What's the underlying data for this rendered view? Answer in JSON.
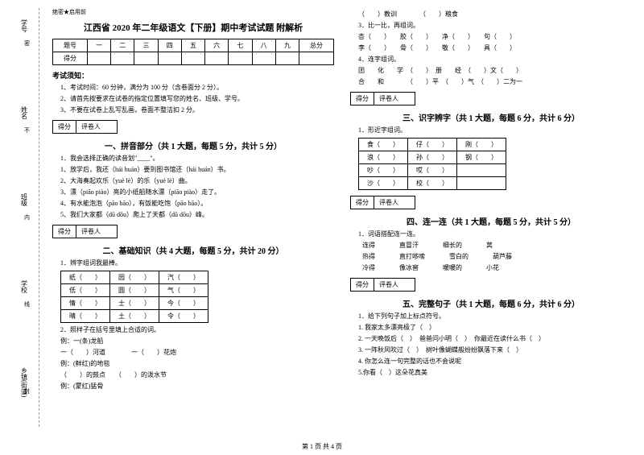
{
  "side": {
    "labels": [
      "学号",
      "姓名",
      "班级",
      "学校",
      "乡镇(街道)"
    ],
    "marks": [
      "密",
      "不",
      "内",
      "线",
      "封"
    ]
  },
  "topNote": "绝密★启用前",
  "title": "江西省 2020 年二年级语文【下册】期中考试试题 附解析",
  "scoreTable": {
    "headers": [
      "题号",
      "一",
      "二",
      "三",
      "四",
      "五",
      "六",
      "七",
      "八",
      "九",
      "总分"
    ],
    "row": "得分"
  },
  "notice": {
    "title": "考试须知：",
    "items": [
      "1、考试时间：60 分钟，满分为 100 分（含卷面分 2 分）。",
      "2、请首先按要求在试卷的指定位置填写您的姓名、班级、学号。",
      "3、不要在试卷上乱写乱画，卷面不整洁扣 2 分。"
    ]
  },
  "scoreBox": {
    "a": "得分",
    "b": "评卷人"
  },
  "q1": {
    "title": "一、拼音部分（共 1 大题，每题 5 分，共计 5 分）",
    "stem": "1．我会选择正确的读音划\"____\"。",
    "lines": [
      "1、放学后，我还（hái  huán）要到图书馆还（hái  huán）书。",
      "2、大海奏起欢乐（yuè  lè）的乐（yuè  lè）曲。",
      "3、漂（piāo  piào）亮的小纸船随水漂（piāo  piào）走了。",
      "4、有水能泡泡（pāo bāo），有饭能吃饱（pāo bāo）。",
      "5、我们大家都（dū dōu）爬上了天都（dū dōu）峰。"
    ]
  },
  "q2": {
    "title": "二、基础知识（共 4 大题，每题 5 分，共计 20 分）",
    "stem1": "1．辨字组词我最棒。",
    "table": [
      [
        "纸（　　）",
        "园（　　）",
        "汽（　　）"
      ],
      [
        "低（　　）",
        "圆（　　）",
        "气（　　）"
      ],
      [
        "情（　　）",
        "士（　　）",
        "今（　　）"
      ],
      [
        "晴（　　）",
        "土（　　）",
        "令（　　）"
      ]
    ],
    "stem2": "2．照样子在括号里填上合适的词。",
    "lines2": [
      "例：一(条)龙船",
      "一（　　）河道　　　　一（　　）花炮",
      "例：(鲜红)的地毯",
      "（　　）的鼓点　　（　　）的泼水节",
      "例：(蒙红)猛骨"
    ]
  },
  "right": {
    "top": [
      "（　　）教训　　　　（　　）粮食",
      "3．比一比，再组词。",
      "杏（　　）　　胶（　　）　　净（　　）　　句（　　）",
      "李（　　）　　骨（　　）　　敬（　　）　　具（　　）",
      "4．连字组词。",
      "团　　化　　学　（　　）　册　　经　（　　）文（　　）",
      "合　　和　　　　（　　）平　（　　）气　（　　）二为一"
    ],
    "q3": {
      "title": "三、识字辨字（共 1 大题，每题 6 分，共计 6 分）",
      "stem": "1．形近字组词。",
      "table": [
        [
          "食（　　）",
          "仔（　　）",
          "刚（　　）"
        ],
        [
          "浪（　　）",
          "孙（　　）",
          "钢（　　）"
        ],
        [
          "吵（　　）",
          "哎（　　）",
          ""
        ],
        [
          "沙（　　）",
          "校（　　）",
          ""
        ]
      ]
    },
    "q4": {
      "title": "四、连一连（共 1 大题，每题 5 分，共计 5 分）",
      "stem": "1．词语搭配连一连。",
      "rows": [
        [
          "连得",
          "直冒汗",
          "细长的",
          "莴"
        ],
        [
          "热得",
          "直打哆嗦",
          "雪白的",
          "葫芦藤"
        ],
        [
          "冷得",
          "像冰窖",
          "暖暖的",
          "小花"
        ]
      ]
    },
    "q5": {
      "title": "五、完整句子（共 1 大题，每题 6 分，共计 6 分）",
      "stem": "1．给下列句子加上标点符号。",
      "lines": [
        "1. 我家太多漂亮极了（　）",
        "2. 一天晚饭后（　）　爸爸问小明（　）　你最近在读什么书（　）",
        "3. 一阵秋风吹过（　）　树叶像蝴蝶般纷纷飘落下来（　）",
        "4. 你怎么连一句完整的话也不会说呢",
        "5.你看（　）这朵花真美"
      ]
    }
  },
  "footer": "第 1 页 共 4 页"
}
